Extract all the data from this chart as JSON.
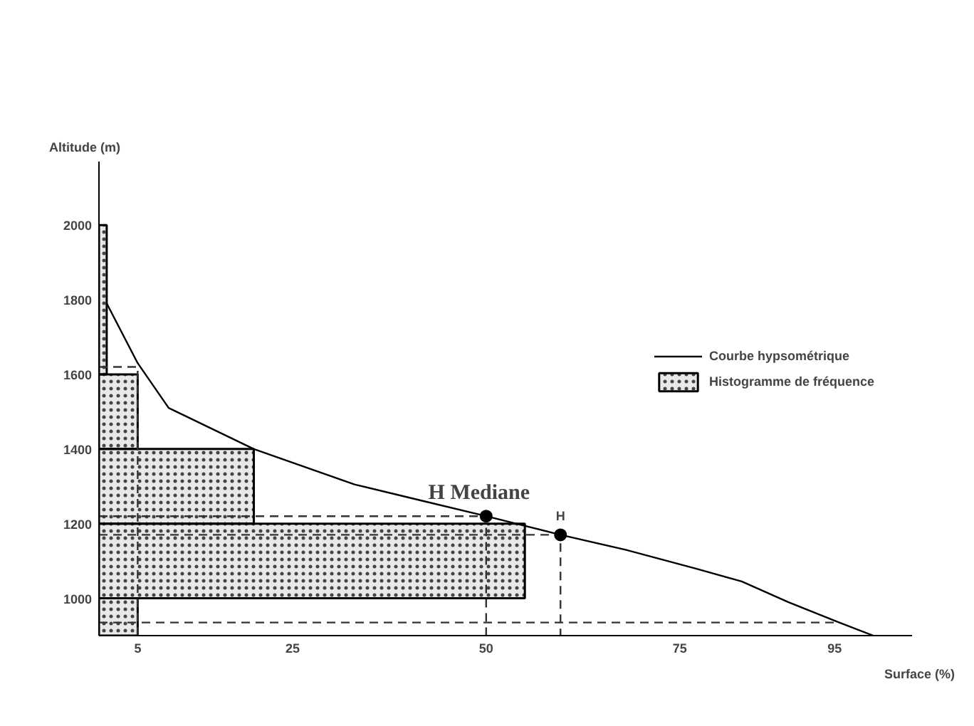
{
  "chart_data": {
    "type": "histogram",
    "orientation": "horizontal",
    "xlabel": "Surface (%)",
    "ylabel": "Altitude (m)",
    "xlim": [
      0,
      105
    ],
    "xticks": [
      5,
      25,
      50,
      75,
      95
    ],
    "ylim": [
      900,
      2170
    ],
    "yticks": [
      1000,
      1200,
      1400,
      1600,
      1800,
      2000
    ],
    "grid": false,
    "legend": "right",
    "annotations": [
      {
        "text": "H Mediane",
        "x": 50,
        "y": 1220
      },
      {
        "text": "H",
        "x": 59.6,
        "y": 1170
      }
    ],
    "series": [
      {
        "name": "Histogramme de fréquence",
        "color": "#444444",
        "bins": [
          900,
          1000,
          1200,
          1400,
          1600,
          2000
        ],
        "values": [
          5,
          55,
          20,
          5,
          1
        ]
      },
      {
        "type": "line",
        "name": "Courbe hypsométrique",
        "color": "#000000",
        "x": [
          1790,
          1630,
          1510,
          1400,
          1305,
          1260,
          1220,
          1170,
          1130,
          1080,
          1045,
          990,
          935,
          900
        ],
        "values": [
          1,
          5,
          9,
          20,
          33,
          42,
          50,
          59.6,
          68,
          77,
          83,
          89,
          95.6,
          100
        ]
      },
      {
        "type": "line",
        "color": "#333333",
        "line_style": "dashed",
        "x": [
          1620,
          1620,
          900
        ],
        "values": [
          0,
          5,
          5
        ]
      },
      {
        "type": "line",
        "color": "#333333",
        "line_style": "dashed",
        "x": [
          1220,
          1220,
          900
        ],
        "values": [
          0,
          50,
          50
        ]
      },
      {
        "type": "line",
        "color": "#333333",
        "line_style": "dashed",
        "x": [
          1170,
          1170,
          900
        ],
        "values": [
          0,
          59.6,
          59.6
        ]
      },
      {
        "type": "line",
        "color": "#333333",
        "line_style": "dashed",
        "x": [
          935,
          935
        ],
        "values": [
          0,
          95
        ]
      },
      {
        "type": "scatter",
        "color": "#000000",
        "marker": "circle",
        "x": [
          1220,
          1170
        ],
        "values": [
          50,
          59.6
        ]
      }
    ]
  }
}
